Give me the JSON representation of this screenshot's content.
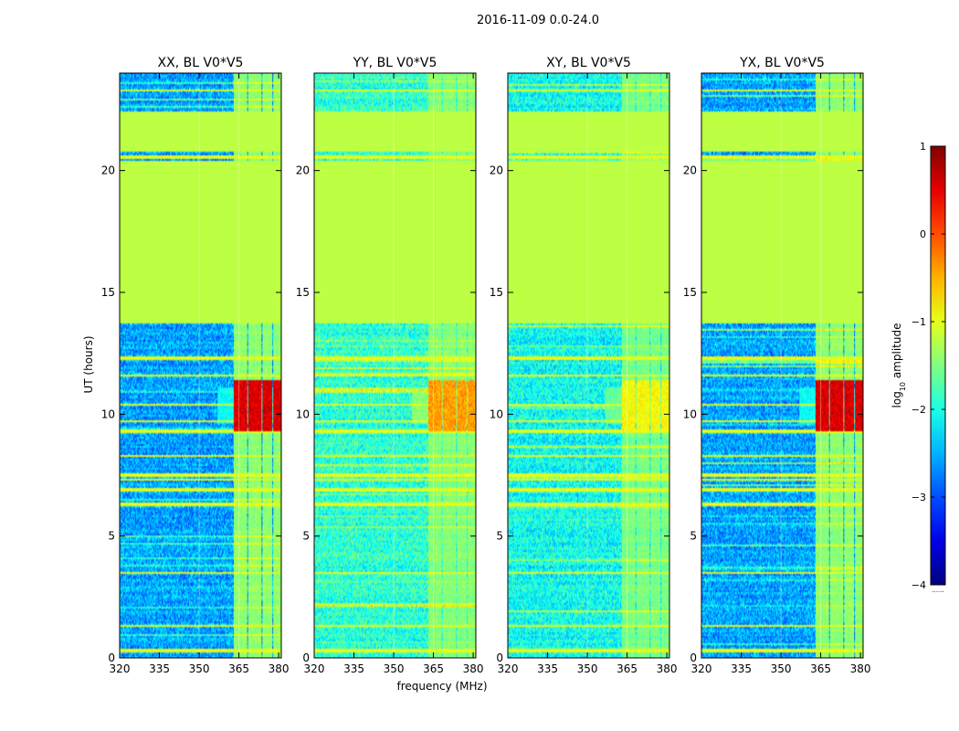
{
  "chart_data": {
    "type": "heatmap",
    "suptitle": "2016-11-09 0.0-24.0",
    "xlabel": "frequency (MHz)",
    "ylabel": "UT (hours)",
    "xlim": [
      320,
      381
    ],
    "ylim": [
      0,
      24
    ],
    "xticks": [
      320,
      335,
      350,
      365,
      380
    ],
    "yticks": [
      0,
      5,
      10,
      15,
      20
    ],
    "colorbar": {
      "label": "log10 amplitude",
      "label_base": "log",
      "label_sub": "10",
      "label_rest": " amplitude",
      "min": -4,
      "max": 1,
      "ticks": [
        "−4",
        "−3",
        "−2",
        "−1",
        "0",
        "1"
      ],
      "dots": "......"
    },
    "panels": [
      {
        "title": "XX, BL V0*V5",
        "noise": -2.7,
        "rfi": -1.5,
        "burst": 0.55,
        "burst_t": [
          9.3,
          11.4
        ],
        "fill": -1.2
      },
      {
        "title": "YY, BL V0*V5",
        "noise": -2.05,
        "rfi": -1.55,
        "burst": -0.4,
        "burst_t": [
          9.3,
          11.4
        ],
        "fill": -1.2
      },
      {
        "title": "XY, BL V0*V5",
        "noise": -2.2,
        "rfi": -1.6,
        "burst": -0.9,
        "burst_t": [
          9.3,
          11.4
        ],
        "fill": -1.2
      },
      {
        "title": "YX, BL V0*V5",
        "noise": -2.7,
        "rfi": -1.5,
        "burst": 0.55,
        "burst_t": [
          9.3,
          11.4
        ],
        "fill": -1.2
      }
    ],
    "flagged_ut_ranges": [
      [
        13.7,
        20.4
      ],
      [
        20.75,
        22.45
      ]
    ],
    "rfi_band_mhz": [
      362,
      380
    ],
    "rfi_channels_mhz": [
      [
        363,
        368
      ],
      [
        368.5,
        373.5
      ],
      [
        374,
        377.5
      ],
      [
        378,
        381
      ]
    ],
    "hot_time_lines_ut": [
      0.3,
      1.3,
      3.5,
      6.3,
      6.9,
      7.3,
      7.5,
      8.3,
      9.3,
      9.7,
      10.4,
      11.6,
      12.3,
      20.55,
      23.3
    ]
  }
}
